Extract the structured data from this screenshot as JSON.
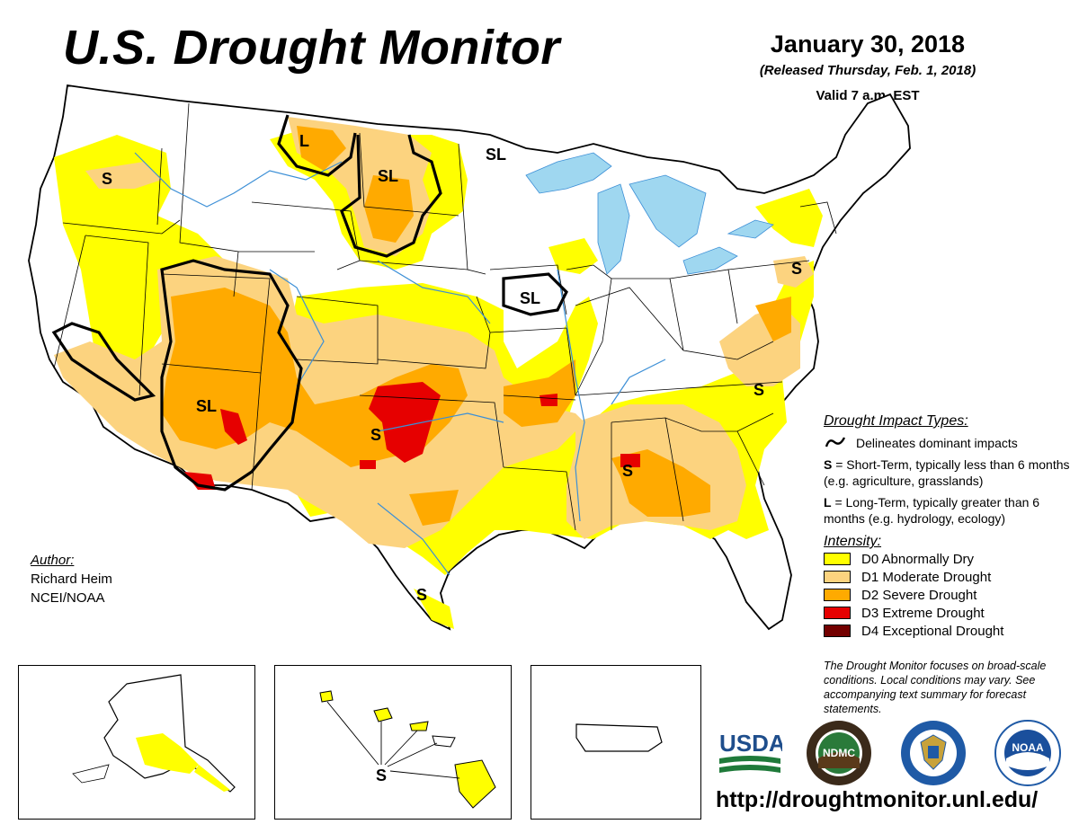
{
  "header": {
    "title": "U.S. Drought Monitor",
    "date": "January 30, 2018",
    "released": "(Released Thursday, Feb. 1, 2018)",
    "valid": "Valid 7 a.m. EST"
  },
  "colors": {
    "D0": "#ffff00",
    "D1": "#fcd37f",
    "D2": "#ffaa00",
    "D3": "#e60000",
    "D4": "#730000",
    "water": "#9fd7f0",
    "boundary": "#000000",
    "river": "#3c8fd6"
  },
  "map_labels": {
    "s_ore": "S",
    "l_mt": "L",
    "sl_dak": "SL",
    "sl_nd": "SL",
    "sl_ia": "SL",
    "s_pa": "S",
    "sl_sw": "SL",
    "s_ok": "S",
    "s_nc": "S",
    "s_al": "S",
    "s_tx": "S",
    "s_hi": "S"
  },
  "legend": {
    "impact_heading": "Drought Impact Types:",
    "delineates": "Delineates dominant impacts",
    "s_key": "S",
    "s_text": " = Short-Term, typically less than 6 months (e.g. agriculture, grasslands)",
    "l_key": "L",
    "l_text": " = Long-Term, typically greater than 6 months (e.g. hydrology, ecology)",
    "intensity_heading": "Intensity:",
    "levels": [
      {
        "label": "D0 Abnormally Dry",
        "color": "#ffff00"
      },
      {
        "label": "D1 Moderate Drought",
        "color": "#fcd37f"
      },
      {
        "label": "D2 Severe Drought",
        "color": "#ffaa00"
      },
      {
        "label": "D3 Extreme Drought",
        "color": "#e60000"
      },
      {
        "label": "D4 Exceptional Drought",
        "color": "#730000"
      }
    ]
  },
  "author": {
    "heading": "Author:",
    "name": "Richard Heim",
    "org": "NCEI/NOAA"
  },
  "note": "The Drought Monitor focuses on broad-scale conditions. Local conditions may vary. See accompanying text summary for forecast statements.",
  "logos": {
    "usda": "USDA",
    "ndmc": "NDMC",
    "commerce": "commerce-seal-icon",
    "noaa": "NOAA"
  },
  "url": "http://droughtmonitor.unl.edu/"
}
